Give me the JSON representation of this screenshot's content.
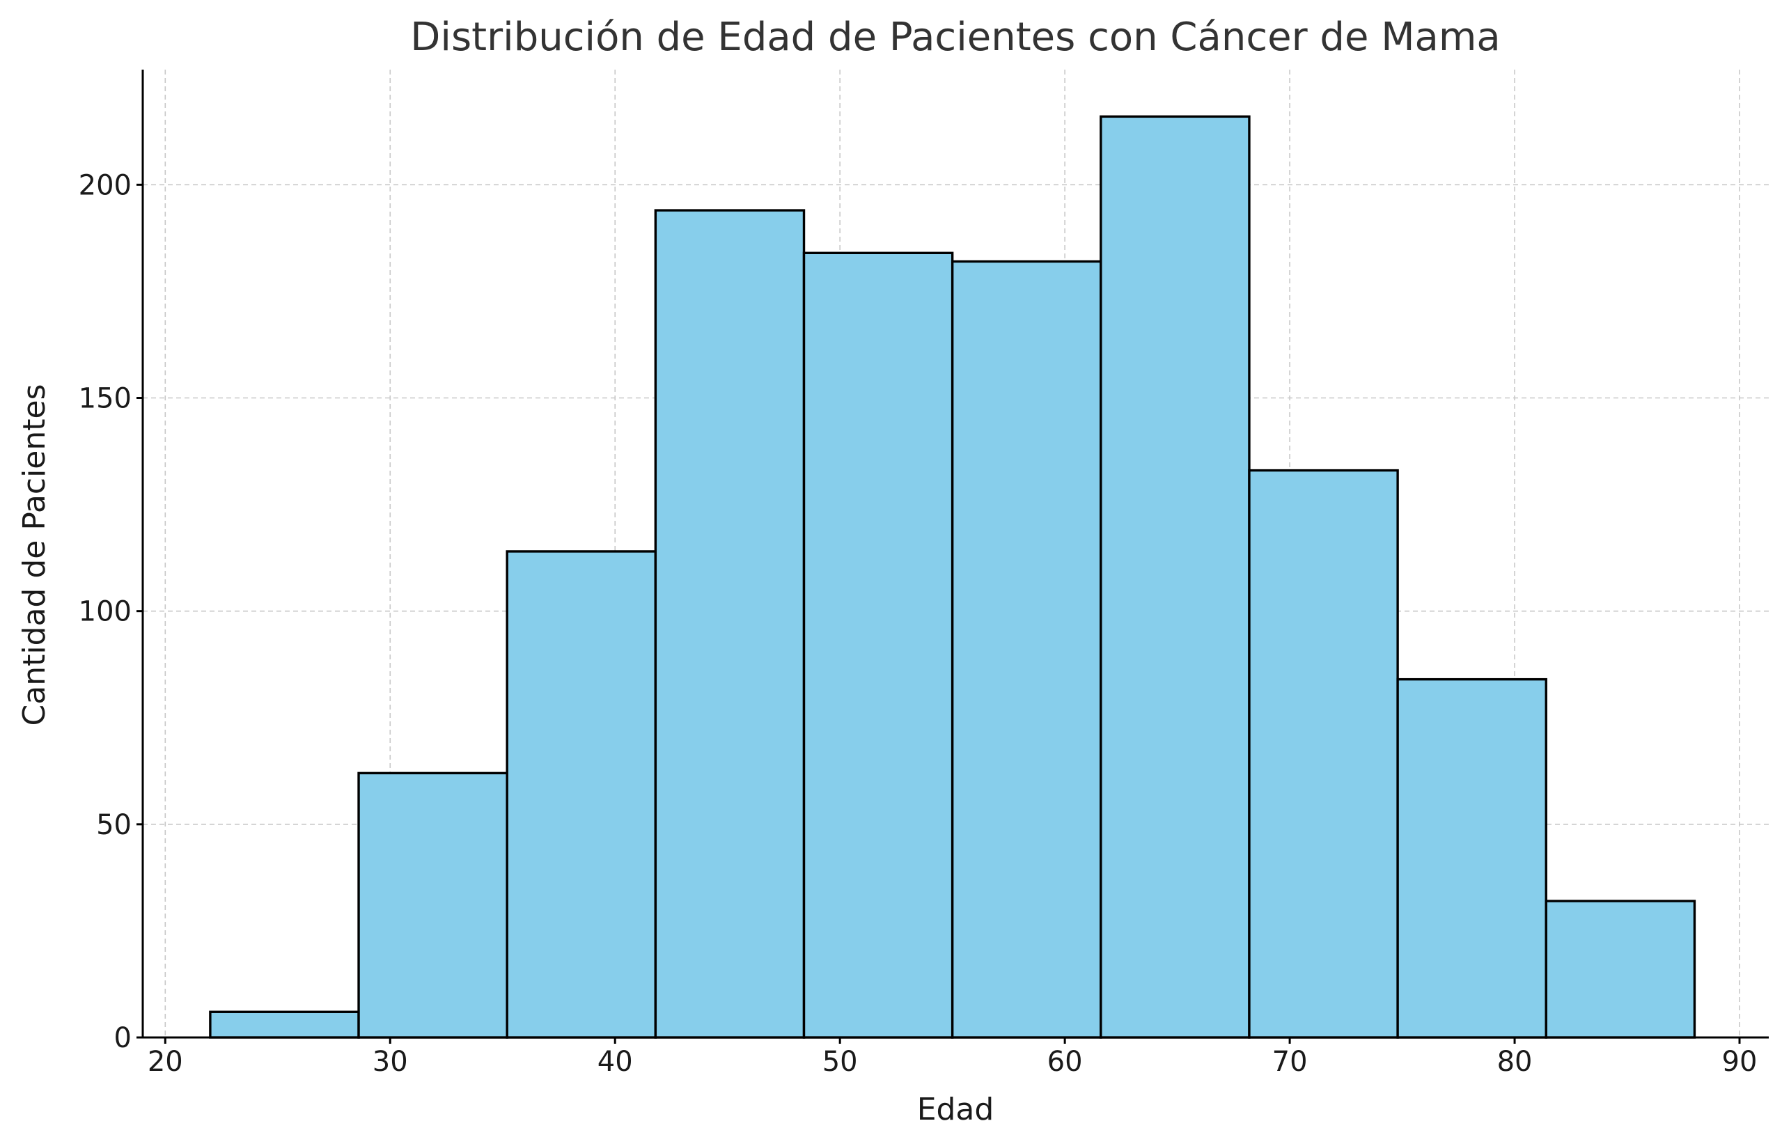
{
  "chart_data": {
    "type": "bar",
    "title": "Distribución de Edad de Pacientes con Cáncer de Mama",
    "xlabel": "Edad",
    "ylabel": "Cantidad de Pacientes",
    "histogram": true,
    "bin_edges": [
      22.0,
      28.6,
      35.2,
      41.8,
      48.4,
      55.0,
      61.6,
      68.2,
      74.8,
      81.4,
      88.0
    ],
    "values": [
      6,
      62,
      114,
      194,
      184,
      182,
      216,
      133,
      84,
      32
    ],
    "xlim": [
      19,
      91.3
    ],
    "ylim": [
      0,
      227
    ],
    "xticks": [
      20,
      30,
      40,
      50,
      60,
      70,
      80,
      90
    ],
    "yticks": [
      0,
      50,
      100,
      150,
      200
    ],
    "grid": true,
    "colors": {
      "bar_fill": "#87ceeb",
      "bar_edge": "#000000",
      "grid": "#c8c8c8"
    }
  }
}
